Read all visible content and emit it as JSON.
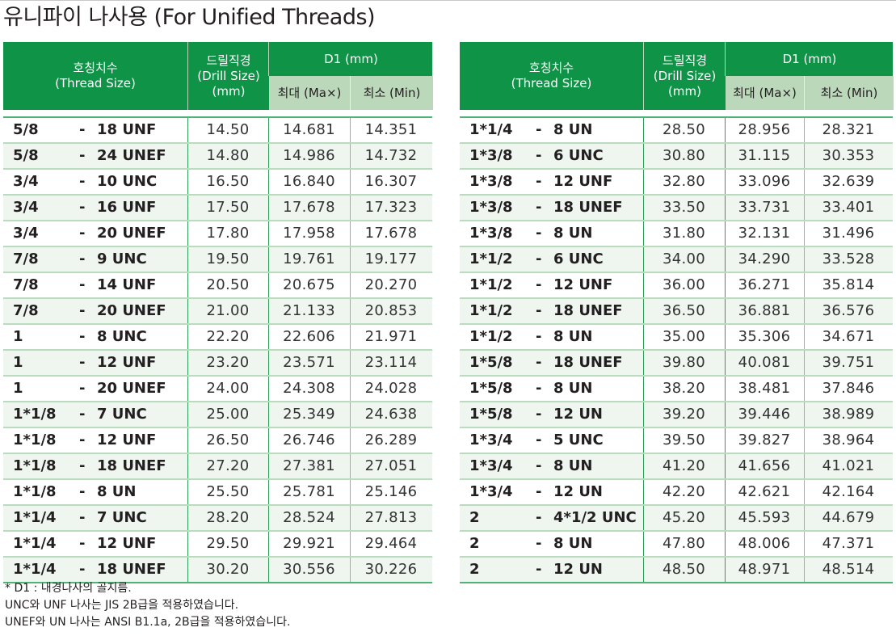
{
  "title": "유니파이 나사용 (For Unified Threads)",
  "colors": {
    "header_green": "#0f9347",
    "subheader_light_green": "#bbd8bb",
    "row_alt_bg": "#eff6f0",
    "border_green": "#4fb377"
  },
  "headers": {
    "thread_size_ko": "호칭치수",
    "thread_size_en": "(Thread Size)",
    "drill_ko": "드릴직경",
    "drill_en": "(Drill Size)",
    "drill_unit": "(mm)",
    "d1": "D1 (mm)",
    "max": "최대 (Ma×)",
    "min": "최소 (Min)"
  },
  "left_table": [
    {
      "size": "5/8",
      "dash": "-",
      "pitch": "18 UNF",
      "drill": "14.50",
      "max": "14.681",
      "min": "14.351"
    },
    {
      "size": "5/8",
      "dash": "-",
      "pitch": "24 UNEF",
      "drill": "14.80",
      "max": "14.986",
      "min": "14.732"
    },
    {
      "size": "3/4",
      "dash": "-",
      "pitch": "10 UNC",
      "drill": "16.50",
      "max": "16.840",
      "min": "16.307"
    },
    {
      "size": "3/4",
      "dash": "-",
      "pitch": "16 UNF",
      "drill": "17.50",
      "max": "17.678",
      "min": "17.323"
    },
    {
      "size": "3/4",
      "dash": "-",
      "pitch": "20 UNEF",
      "drill": "17.80",
      "max": "17.958",
      "min": "17.678"
    },
    {
      "size": "7/8",
      "dash": "-",
      "pitch": "9 UNC",
      "drill": "19.50",
      "max": "19.761",
      "min": "19.177"
    },
    {
      "size": "7/8",
      "dash": "-",
      "pitch": "14 UNF",
      "drill": "20.50",
      "max": "20.675",
      "min": "20.270"
    },
    {
      "size": "7/8",
      "dash": "-",
      "pitch": "20 UNEF",
      "drill": "21.00",
      "max": "21.133",
      "min": "20.853"
    },
    {
      "size": "1",
      "dash": "-",
      "pitch": "8 UNC",
      "drill": "22.20",
      "max": "22.606",
      "min": "21.971"
    },
    {
      "size": "1",
      "dash": "-",
      "pitch": "12 UNF",
      "drill": "23.20",
      "max": "23.571",
      "min": "23.114"
    },
    {
      "size": "1",
      "dash": "-",
      "pitch": "20 UNEF",
      "drill": "24.00",
      "max": "24.308",
      "min": "24.028"
    },
    {
      "size": "1*1/8",
      "dash": "-",
      "pitch": "7 UNC",
      "drill": "25.00",
      "max": "25.349",
      "min": "24.638"
    },
    {
      "size": "1*1/8",
      "dash": "-",
      "pitch": "12 UNF",
      "drill": "26.50",
      "max": "26.746",
      "min": "26.289"
    },
    {
      "size": "1*1/8",
      "dash": "-",
      "pitch": "18 UNEF",
      "drill": "27.20",
      "max": "27.381",
      "min": "27.051"
    },
    {
      "size": "1*1/8",
      "dash": "-",
      "pitch": "8 UN",
      "drill": "25.50",
      "max": "25.781",
      "min": "25.146"
    },
    {
      "size": "1*1/4",
      "dash": "-",
      "pitch": "7 UNC",
      "drill": "28.20",
      "max": "28.524",
      "min": "27.813"
    },
    {
      "size": "1*1/4",
      "dash": "-",
      "pitch": "12 UNF",
      "drill": "29.50",
      "max": "29.921",
      "min": "29.464"
    },
    {
      "size": "1*1/4",
      "dash": "-",
      "pitch": "18 UNEF",
      "drill": "30.20",
      "max": "30.556",
      "min": "30.226"
    }
  ],
  "right_table": [
    {
      "size": "1*1/4",
      "dash": "-",
      "pitch": "8 UN",
      "drill": "28.50",
      "max": "28.956",
      "min": "28.321"
    },
    {
      "size": "1*3/8",
      "dash": "-",
      "pitch": "6 UNC",
      "drill": "30.80",
      "max": "31.115",
      "min": "30.353"
    },
    {
      "size": "1*3/8",
      "dash": "-",
      "pitch": "12 UNF",
      "drill": "32.80",
      "max": "33.096",
      "min": "32.639"
    },
    {
      "size": "1*3/8",
      "dash": "-",
      "pitch": "18 UNEF",
      "drill": "33.50",
      "max": "33.731",
      "min": "33.401"
    },
    {
      "size": "1*3/8",
      "dash": "-",
      "pitch": "8 UN",
      "drill": "31.80",
      "max": "32.131",
      "min": "31.496"
    },
    {
      "size": "1*1/2",
      "dash": "-",
      "pitch": "6 UNC",
      "drill": "34.00",
      "max": "34.290",
      "min": "33.528"
    },
    {
      "size": "1*1/2",
      "dash": "-",
      "pitch": "12 UNF",
      "drill": "36.00",
      "max": "36.271",
      "min": "35.814"
    },
    {
      "size": "1*1/2",
      "dash": "-",
      "pitch": "18 UNEF",
      "drill": "36.50",
      "max": "36.881",
      "min": "36.576"
    },
    {
      "size": "1*1/2",
      "dash": "-",
      "pitch": "8 UN",
      "drill": "35.00",
      "max": "35.306",
      "min": "34.671"
    },
    {
      "size": "1*5/8",
      "dash": "-",
      "pitch": "18 UNEF",
      "drill": "39.80",
      "max": "40.081",
      "min": "39.751"
    },
    {
      "size": "1*5/8",
      "dash": "-",
      "pitch": "8 UN",
      "drill": "38.20",
      "max": "38.481",
      "min": "37.846"
    },
    {
      "size": "1*5/8",
      "dash": "-",
      "pitch": "12 UN",
      "drill": "39.20",
      "max": "39.446",
      "min": "38.989"
    },
    {
      "size": "1*3/4",
      "dash": "-",
      "pitch": "5 UNC",
      "drill": "39.50",
      "max": "39.827",
      "min": "38.964"
    },
    {
      "size": "1*3/4",
      "dash": "-",
      "pitch": "8 UN",
      "drill": "41.20",
      "max": "41.656",
      "min": "41.021"
    },
    {
      "size": "1*3/4",
      "dash": "-",
      "pitch": "12 UN",
      "drill": "42.20",
      "max": "42.621",
      "min": "42.164"
    },
    {
      "size": "2",
      "dash": "-",
      "pitch": "4*1/2 UNC",
      "drill": "45.20",
      "max": "45.593",
      "min": "44.679"
    },
    {
      "size": "2",
      "dash": "-",
      "pitch": "8 UN",
      "drill": "47.80",
      "max": "48.006",
      "min": "47.371"
    },
    {
      "size": "2",
      "dash": "-",
      "pitch": "12 UN",
      "drill": "48.50",
      "max": "48.971",
      "min": "48.514"
    }
  ],
  "notes": [
    "* D1 : 내경나사의 골지름.",
    "UNC와 UNF 나사는 JIS 2B급을 적용하였습니다.",
    "UNEF와 UN 나사는 ANSI B1.1a, 2B급을 적용하였습니다."
  ]
}
